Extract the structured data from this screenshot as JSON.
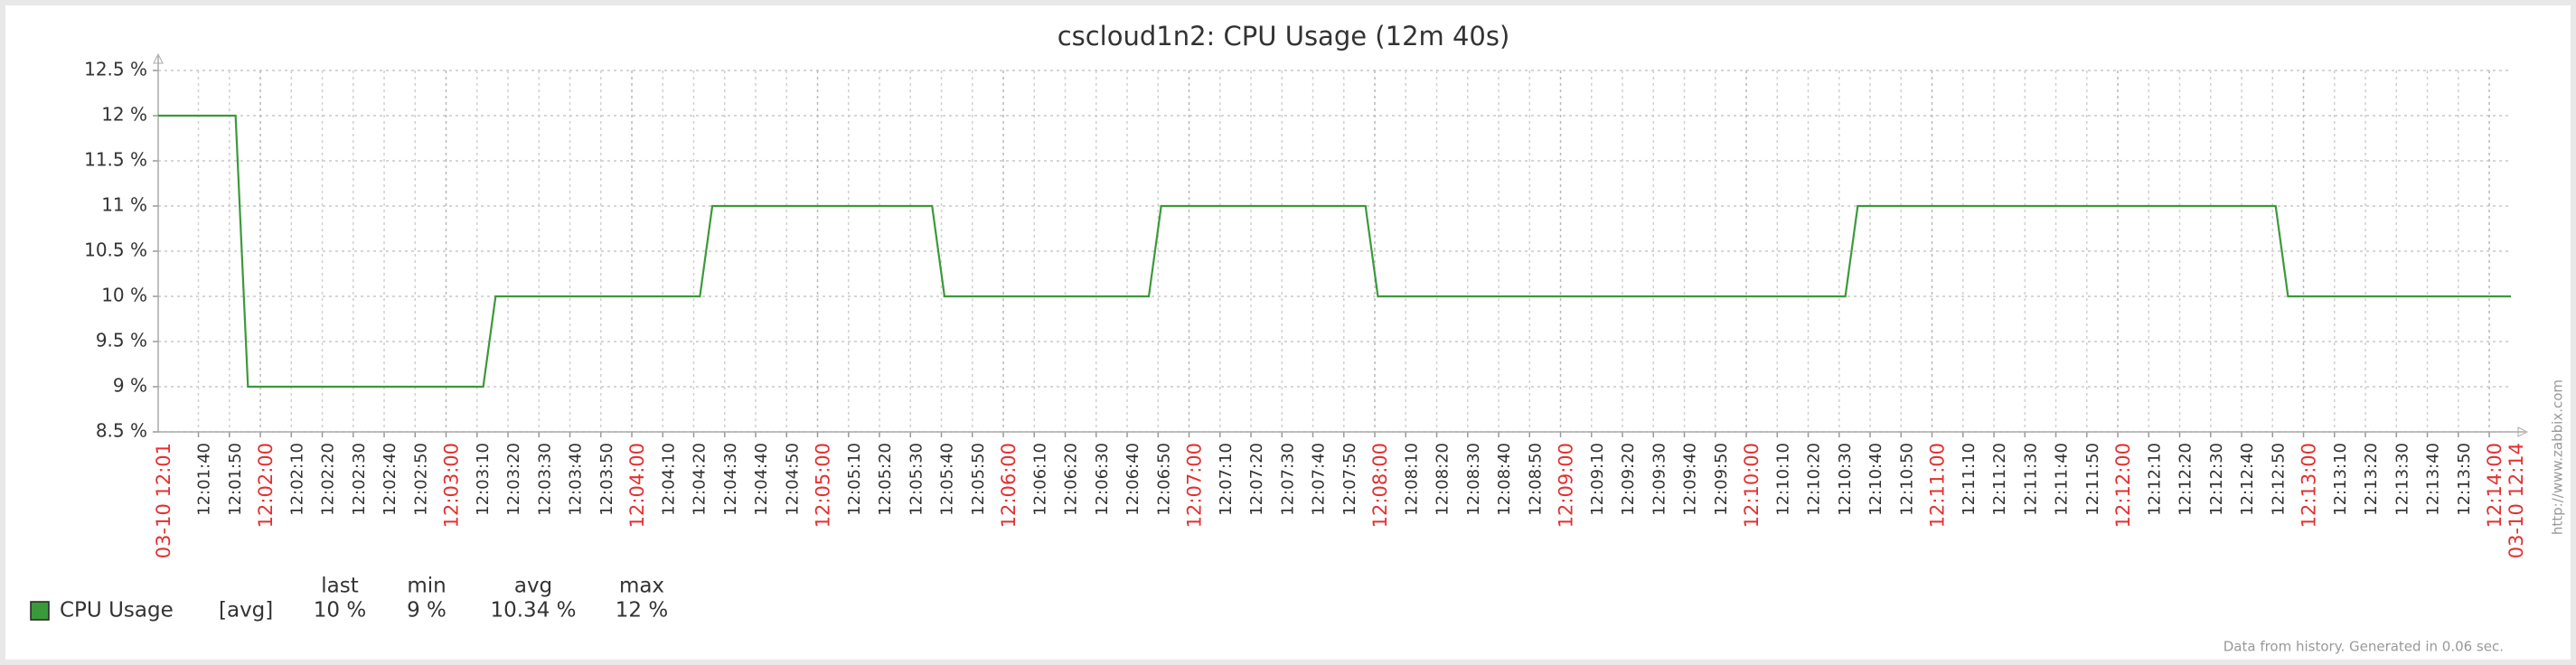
{
  "chart_data": {
    "type": "line",
    "title": "cscloud1n2: CPU Usage (12m 40s)",
    "x": [
      "12:01:27",
      "12:01:52",
      "12:01:56",
      "12:03:12",
      "12:03:16",
      "12:04:22",
      "12:04:26",
      "12:05:37",
      "12:05:41",
      "12:06:47",
      "12:06:51",
      "12:07:57",
      "12:08:01",
      "12:10:32",
      "12:10:36",
      "12:12:51",
      "12:12:55",
      "12:14:07"
    ],
    "series": [
      {
        "name": "CPU Usage",
        "color": "#3a9a3a",
        "values": [
          12,
          12,
          9,
          9,
          10,
          10,
          11,
          11,
          10,
          10,
          11,
          11,
          10,
          10,
          11,
          11,
          10,
          10
        ]
      }
    ],
    "xlim": [
      {
        "value": "12:01:27",
        "label": "03-10 12:01"
      },
      {
        "value": "12:14:07",
        "label": "03-10 12:14"
      }
    ],
    "xticks": [
      "12:01:40",
      "12:01:50",
      "12:02:00",
      "12:02:10",
      "12:02:20",
      "12:02:30",
      "12:02:40",
      "12:02:50",
      "12:03:00",
      "12:03:10",
      "12:03:20",
      "12:03:30",
      "12:03:40",
      "12:03:50",
      "12:04:00",
      "12:04:10",
      "12:04:20",
      "12:04:30",
      "12:04:40",
      "12:04:50",
      "12:05:00",
      "12:05:10",
      "12:05:20",
      "12:05:30",
      "12:05:40",
      "12:05:50",
      "12:06:00",
      "12:06:10",
      "12:06:20",
      "12:06:30",
      "12:06:40",
      "12:06:50",
      "12:07:00",
      "12:07:10",
      "12:07:20",
      "12:07:30",
      "12:07:40",
      "12:07:50",
      "12:08:00",
      "12:08:10",
      "12:08:20",
      "12:08:30",
      "12:08:40",
      "12:08:50",
      "12:09:00",
      "12:09:10",
      "12:09:20",
      "12:09:30",
      "12:09:40",
      "12:09:50",
      "12:10:00",
      "12:10:10",
      "12:10:20",
      "12:10:30",
      "12:10:40",
      "12:10:50",
      "12:11:00",
      "12:11:10",
      "12:11:20",
      "12:11:30",
      "12:11:40",
      "12:11:50",
      "12:12:00",
      "12:12:10",
      "12:12:20",
      "12:12:30",
      "12:12:40",
      "12:12:50",
      "12:13:00",
      "12:13:10",
      "12:13:20",
      "12:13:30",
      "12:13:40",
      "12:13:50",
      "12:14:00"
    ],
    "ylim": [
      8.5,
      12.5
    ],
    "yticks": [
      {
        "value": 8.5,
        "label": "8.5 %"
      },
      {
        "value": 9,
        "label": "9 %"
      },
      {
        "value": 9.5,
        "label": "9.5 %"
      },
      {
        "value": 10,
        "label": "10 %"
      },
      {
        "value": 10.5,
        "label": "10.5 %"
      },
      {
        "value": 11,
        "label": "11 %"
      },
      {
        "value": 11.5,
        "label": "11.5 %"
      },
      {
        "value": 12,
        "label": "12 %"
      },
      {
        "value": 12.5,
        "label": "12.5 %"
      }
    ],
    "grid": true,
    "major_tick_color": "#e23030",
    "legend_stats": {
      "function": "[avg]",
      "columns": [
        "last",
        "min",
        "avg",
        "max"
      ],
      "values": [
        10,
        9,
        10.34,
        12
      ],
      "value_labels": [
        "10 %",
        "9 %",
        "10.34 %",
        "12 %"
      ]
    },
    "footer": "Data from history. Generated in 0.06 sec.",
    "watermark": "http://www.zabbix.com"
  }
}
